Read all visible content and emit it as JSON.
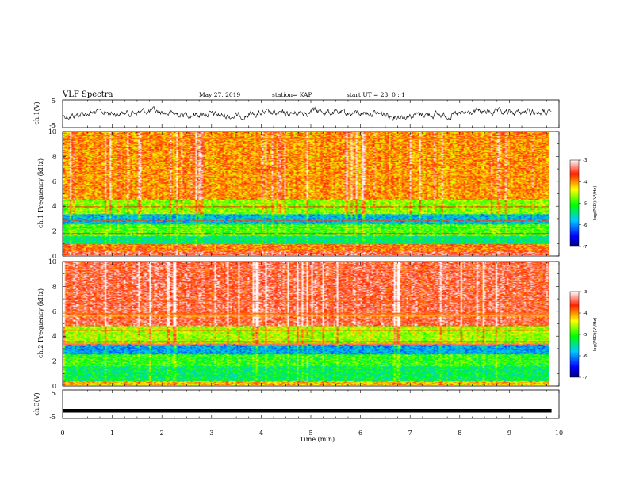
{
  "header": {
    "title": "VLF Spectra",
    "date": "May 27, 2019",
    "station": "station= KAP",
    "start": "start  UT =   23: 0  : 1"
  },
  "chart_data": [
    {
      "type": "line",
      "name": "ch.1 waveform",
      "ylabel": "ch.1(V)",
      "ylim": [
        -5,
        5
      ],
      "yticks": [
        "5",
        "-5"
      ],
      "xlim": [
        0,
        10
      ],
      "approx_level": 0,
      "color": "#000000"
    },
    {
      "type": "heatmap",
      "name": "ch.1 spectrogram",
      "ylabel": "ch.1  Frequency (kHz)",
      "ylim": [
        0,
        10
      ],
      "yticks": [
        "0",
        "2",
        "4",
        "6",
        "8",
        "10"
      ],
      "xlim": [
        0,
        9.85
      ],
      "colorbar": {
        "label": "log(PSD)(V²/Hz)",
        "range": [
          -7,
          -3
        ],
        "ticks": [
          "-3",
          "-4",
          "-5",
          "-6",
          "-7"
        ]
      },
      "bands_khz": [
        {
          "from": 0,
          "to": 0.3,
          "log_psd": -3.5
        },
        {
          "from": 0.3,
          "to": 0.9,
          "log_psd": -3.9
        },
        {
          "from": 0.9,
          "to": 1.5,
          "log_psd": -5.4
        },
        {
          "from": 1.5,
          "to": 2.5,
          "log_psd": -4.9
        },
        {
          "from": 2.5,
          "to": 3.3,
          "log_psd": -5.8
        },
        {
          "from": 3.3,
          "to": 4.5,
          "log_psd": -4.7
        },
        {
          "from": 4.5,
          "to": 10,
          "log_psd": -4.0
        }
      ]
    },
    {
      "type": "heatmap",
      "name": "ch.2 spectrogram",
      "ylabel": "ch.2  Frequency (kHz)",
      "ylim": [
        0,
        10
      ],
      "yticks": [
        "0",
        "2",
        "4",
        "6",
        "8",
        "10"
      ],
      "xlim": [
        0,
        9.85
      ],
      "colorbar": {
        "label": "log(PSD)(V²/Hz)",
        "range": [
          -7,
          -3
        ],
        "ticks": [
          "-3",
          "-4",
          "-5",
          "-6",
          "-7"
        ]
      },
      "bands_khz": [
        {
          "from": 0,
          "to": 0.3,
          "log_psd": -4.2
        },
        {
          "from": 0.3,
          "to": 1.5,
          "log_psd": -5.3
        },
        {
          "from": 1.5,
          "to": 2.5,
          "log_psd": -5.0
        },
        {
          "from": 2.5,
          "to": 3.3,
          "log_psd": -5.9
        },
        {
          "from": 3.3,
          "to": 4.8,
          "log_psd": -4.6
        },
        {
          "from": 4.8,
          "to": 10,
          "log_psd": -3.5
        }
      ]
    },
    {
      "type": "line",
      "name": "ch.3 waveform",
      "ylabel": "ch.3(V)",
      "ylim": [
        -5,
        5
      ],
      "yticks": [
        "5",
        "-5"
      ],
      "xlim": [
        0,
        10
      ],
      "approx_level": -2.3,
      "color": "#000000"
    }
  ],
  "xaxis": {
    "label": "Time (min)",
    "ticks": [
      "0",
      "1",
      "2",
      "3",
      "4",
      "5",
      "6",
      "7",
      "8",
      "9",
      "10"
    ],
    "range": [
      0,
      10
    ]
  }
}
